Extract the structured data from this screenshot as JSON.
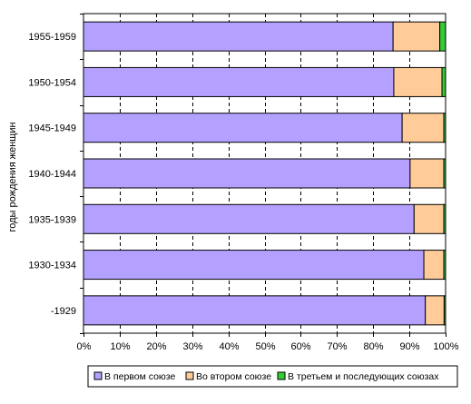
{
  "chart_data": {
    "type": "bar",
    "orientation": "horizontal",
    "stacked": true,
    "normalized": true,
    "categories": [
      "1955-1959",
      "1950-1954",
      "1945-1949",
      "1940-1944",
      "1935-1939",
      "1930-1934",
      "-1929"
    ],
    "series": [
      {
        "name": "В первом союзе",
        "color": "#b4a0ff",
        "values": [
          85.5,
          85.7,
          88.0,
          90.2,
          91.3,
          94.0,
          94.4
        ]
      },
      {
        "name": "Во втором союзе",
        "color": "#ffcc99",
        "values": [
          12.9,
          13.3,
          11.5,
          9.3,
          8.2,
          5.5,
          5.2
        ]
      },
      {
        "name": "В третьем и последующих союзах",
        "color": "#33cc33",
        "values": [
          1.6,
          1.0,
          0.5,
          0.5,
          0.5,
          0.5,
          0.4
        ]
      }
    ],
    "xlim": [
      0,
      100
    ],
    "x_ticks": [
      "0%",
      "10%",
      "20%",
      "30%",
      "40%",
      "50%",
      "60%",
      "70%",
      "80%",
      "90%",
      "100%"
    ],
    "ylabel": "годы рождения женщин",
    "xlabel": "",
    "title": "",
    "grid": "vertical dashed",
    "legend_position": "bottom"
  }
}
